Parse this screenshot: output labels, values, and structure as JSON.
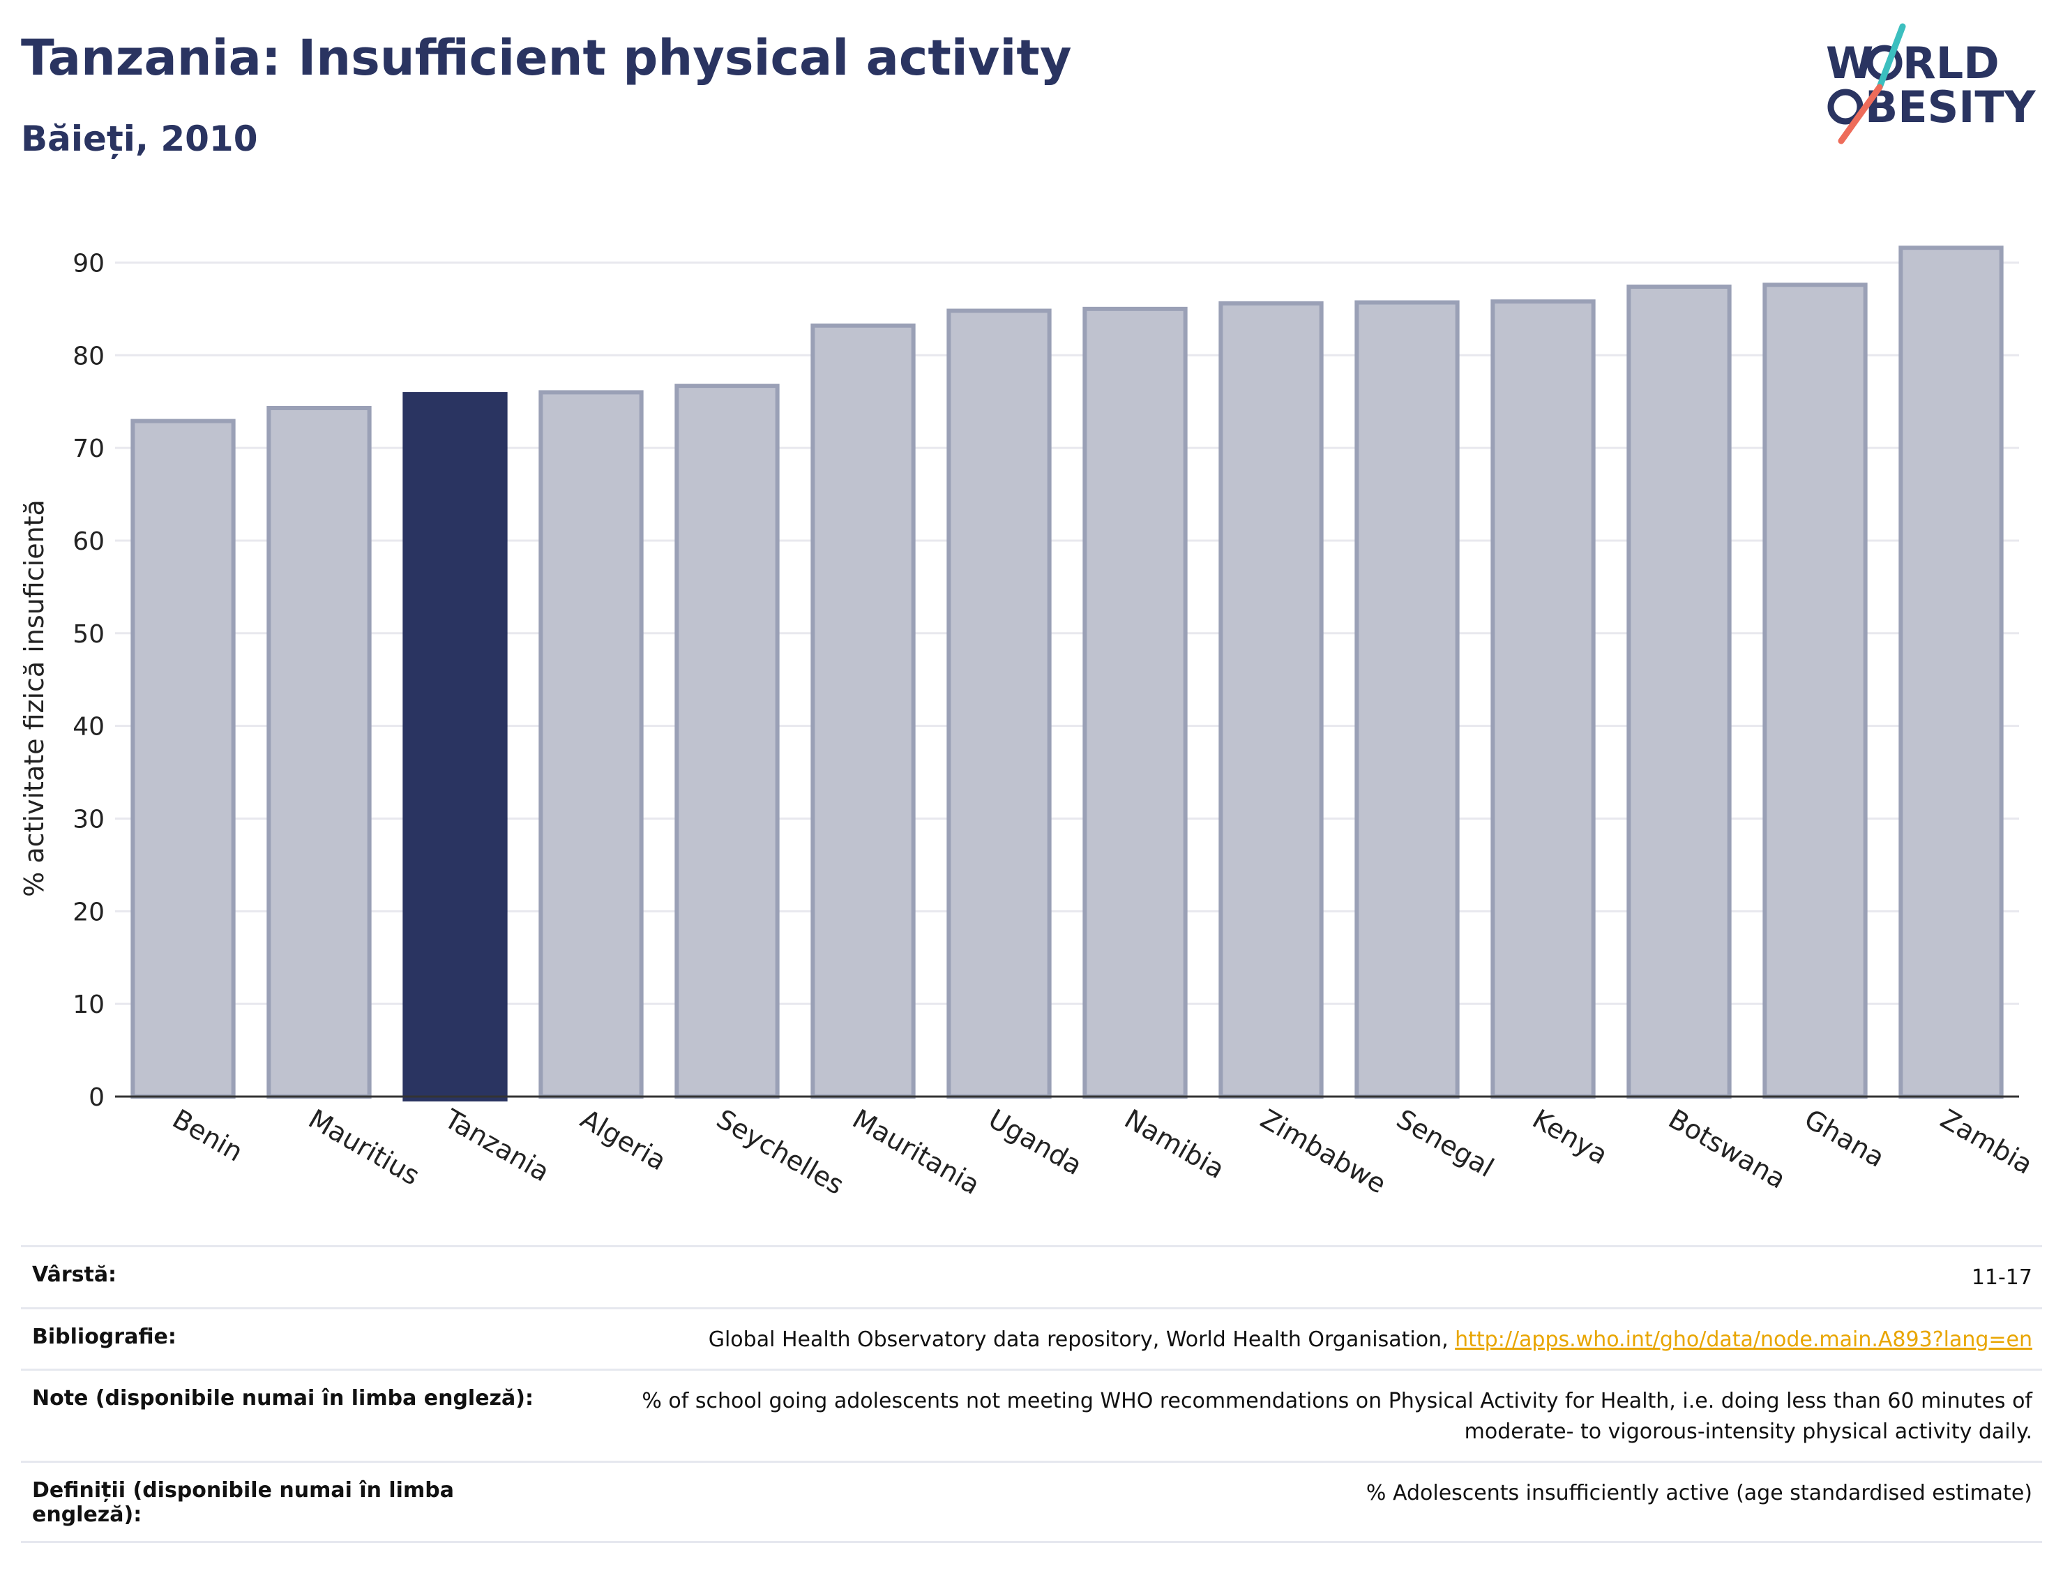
{
  "header": {
    "title": "Tanzania: Insufficient physical activity",
    "subtitle": "Băieți, 2010"
  },
  "logo": {
    "line1": "W",
    "line1b": "RLD",
    "line2": "BESITY",
    "text_color": "#2a3461",
    "slash_teal": "#3cbfbf",
    "slash_coral": "#ee6c5a"
  },
  "chart_data": {
    "type": "bar",
    "ylabel": "% activitate fizică insuficientă",
    "xlabel": "",
    "ylim": [
      0,
      95
    ],
    "yticks": [
      0,
      10,
      20,
      30,
      40,
      50,
      60,
      70,
      80,
      90
    ],
    "grid": true,
    "categories": [
      "Benin",
      "Mauritius",
      "Tanzania",
      "Algeria",
      "Seychelles",
      "Mauritania",
      "Uganda",
      "Namibia",
      "Zimbabwe",
      "Senegal",
      "Kenya",
      "Botswana",
      "Ghana",
      "Zambia"
    ],
    "values": [
      72.9,
      74.3,
      75.8,
      76.0,
      76.7,
      83.2,
      84.8,
      85.0,
      85.6,
      85.7,
      85.8,
      87.4,
      87.6,
      91.6
    ],
    "highlight": "Tanzania",
    "colors": {
      "bar": "#bfc2cf",
      "bar_edge": "#9aa0b6",
      "highlight": "#2a3461",
      "grid": "#e8e8ee",
      "axis": "#333333"
    }
  },
  "meta": [
    {
      "label": "Vârstă:",
      "value": "11-17"
    },
    {
      "label": "Bibliografie:",
      "value": "Global Health Observatory data repository, World Health Organisation, ",
      "link": "http://apps.who.int/gho/data/node.main.A893?lang=en"
    },
    {
      "label": "Note (disponibile numai în limba engleză):",
      "value": "% of school going adolescents not meeting WHO recommendations on Physical Activity for Health, i.e. doing less than 60 minutes of moderate- to vigorous-intensity physical activity daily."
    },
    {
      "label": "Definiții (disponibile numai în limba engleză):",
      "value": "% Adolescents insufficiently active (age standardised estimate)"
    }
  ]
}
